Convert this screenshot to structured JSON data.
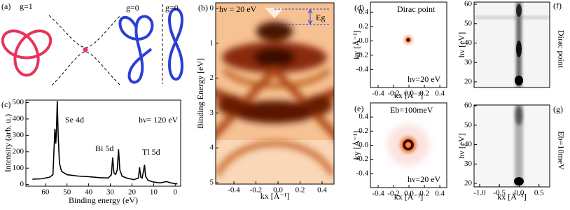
{
  "knots": {
    "label": "(a)",
    "genus": [
      "g=1",
      "g=0",
      "g=0"
    ]
  },
  "chart_data": [
    {
      "type": "line",
      "label": "(c)",
      "color": "#000000",
      "x": [
        66,
        62,
        58,
        56.5,
        55.6,
        55.2,
        54.9,
        54.5,
        54.1,
        53.5,
        52.5,
        50,
        45,
        40,
        35,
        31,
        29.5,
        28.9,
        28.3,
        27.5,
        26.8,
        26.2,
        25.6,
        24.5,
        22,
        19,
        17,
        16.5,
        15.9,
        15.3,
        14.7,
        14.2,
        13.7,
        12.5,
        10,
        7,
        4,
        3,
        2,
        0,
        -1
      ],
      "values": [
        33,
        35,
        45,
        60,
        340,
        250,
        330,
        510,
        300,
        130,
        80,
        60,
        52,
        48,
        42,
        40,
        60,
        165,
        70,
        62,
        90,
        215,
        90,
        50,
        38,
        30,
        40,
        105,
        45,
        40,
        80,
        120,
        50,
        25,
        15,
        10,
        18,
        14,
        10,
        6,
        4
      ],
      "xlabel": "Binding energy (eV)",
      "ylabel": "Intensity (arb. u.)",
      "xlim": [
        69,
        -2.5
      ],
      "ylim": [
        -10,
        515
      ],
      "xticks": [
        60,
        50,
        40,
        30,
        20,
        10,
        0
      ],
      "yticks": [
        0,
        100,
        200,
        300,
        400,
        500
      ],
      "annotations": [
        "Se 4d",
        "Bi 5d",
        "Tl 5d",
        "hν= 120 eV"
      ]
    },
    {
      "type": "image",
      "label": "(b)",
      "xlabel": "kx [Å⁻¹]",
      "ylabel": "Binding Energy [eV]",
      "xlim": [
        -0.565,
        0.508
      ],
      "ylim": [
        5.04,
        -0.16
      ],
      "xticks": [
        -0.4,
        -0.2,
        {
          "value": 0,
          "label": "0.0"
        },
        0.2,
        0.4
      ],
      "yticks": [
        0,
        1,
        2,
        3,
        4,
        5
      ],
      "annotations": [
        "hν = 20 eV",
        "Eg"
      ]
    },
    {
      "type": "image",
      "label": "(d)",
      "xlabel": "kx [Å⁻¹]",
      "ylabel": "ky [Å⁻¹]",
      "xlim": [
        -0.5,
        0.49
      ],
      "ylim": [
        -0.65,
        0.54
      ],
      "xticks": [
        -0.4,
        -0.2,
        {
          "value": 0,
          "label": "0.0"
        },
        0.2,
        0.4
      ],
      "yticks": [
        0.4,
        0.2,
        {
          "value": 0,
          "label": "0.0"
        },
        -0.2,
        -0.4
      ],
      "annotations": [
        "Dirac point",
        "hν=20 eV"
      ]
    },
    {
      "type": "image",
      "label": "(e)",
      "xlabel": "kx [Å⁻¹]",
      "ylabel": "ky [Å⁻¹]",
      "xlim": [
        -0.5,
        0.49
      ],
      "ylim": [
        -0.6,
        0.6
      ],
      "xticks": [
        -0.4,
        -0.2,
        {
          "value": 0,
          "label": "0.0"
        },
        0.2,
        0.4
      ],
      "yticks": [
        0.4,
        0.2,
        {
          "value": 0,
          "label": "0.0"
        },
        -0.2,
        -0.4
      ],
      "annotations": [
        "Eb=100meV",
        "hν=20 eV"
      ]
    },
    {
      "type": "image",
      "label": "(f)",
      "ylabel": "hν [eV]",
      "xlim": [
        -1.14,
        0.77
      ],
      "ylim": [
        17.1,
        61.1
      ],
      "yticks": [
        20,
        30,
        40,
        50,
        60
      ],
      "annotations": [
        "Dirac point"
      ]
    },
    {
      "type": "image",
      "label": "(g)",
      "xlabel": "kx [Å⁻¹]",
      "ylabel": "hν [eV]",
      "xlim": [
        -1.14,
        0.77
      ],
      "ylim": [
        18.2,
        60.4
      ],
      "xticks": [
        {
          "value": -1,
          "label": "-1.0"
        },
        -0.5,
        {
          "value": 0,
          "label": "0.0"
        },
        0.5
      ],
      "yticks": [
        20,
        30,
        40,
        50,
        60
      ],
      "annotations": [
        "Eb=10meV"
      ]
    }
  ]
}
